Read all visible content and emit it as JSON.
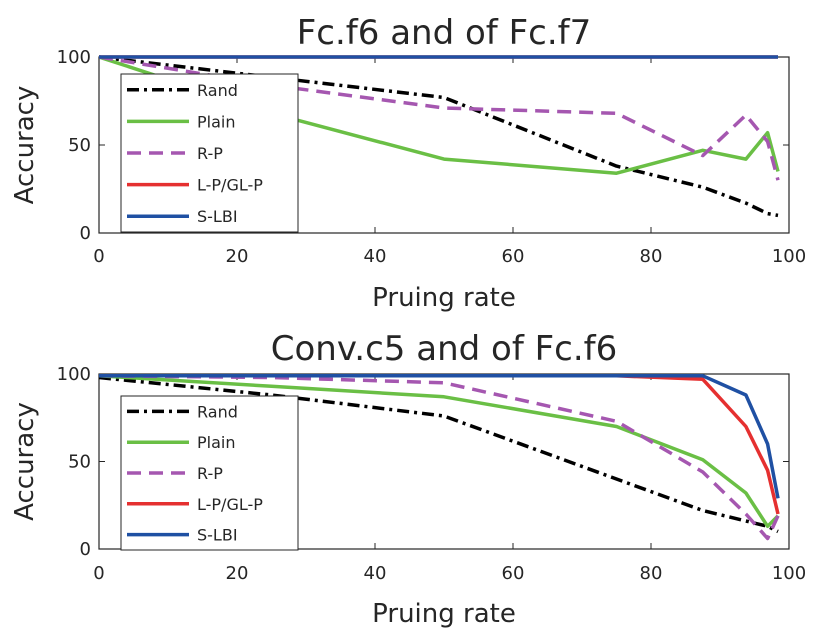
{
  "chart_data": [
    {
      "type": "line",
      "title": "Fc.f6 and of Fc.f7",
      "xlabel": "Pruing rate",
      "ylabel": "Accuracy",
      "xlim": [
        0,
        100
      ],
      "ylim": [
        0,
        100
      ],
      "xticks": [
        "0",
        "20",
        "40",
        "60",
        "80",
        "100"
      ],
      "yticks": [
        "0",
        "50",
        "100"
      ],
      "legend_position": "top-left",
      "series": [
        {
          "name": "Rand",
          "color": "#000000",
          "style": "dashdot",
          "x": [
            0,
            50,
            75,
            87.5,
            93.75,
            96.9,
            98.4
          ],
          "y": [
            100,
            77,
            38,
            26,
            17,
            11,
            10
          ]
        },
        {
          "name": "Plain",
          "color": "#6abf45",
          "style": "solid",
          "x": [
            0,
            25,
            50,
            75,
            87.5,
            93.75,
            96.9,
            98.4
          ],
          "y": [
            100,
            68,
            42,
            34,
            47,
            42,
            57,
            35
          ]
        },
        {
          "name": "R-P",
          "color": "#a557b0",
          "style": "dashed",
          "x": [
            0,
            25,
            50,
            75,
            87.5,
            93.75,
            96.9,
            98.4
          ],
          "y": [
            100,
            84,
            71,
            68,
            44,
            67,
            52,
            30
          ]
        },
        {
          "name": "L-P/GL-P",
          "color": "#e53030",
          "style": "solid",
          "x": [
            0,
            25,
            50,
            75,
            87.5,
            93.75,
            96.9,
            98.4
          ],
          "y": [
            100,
            100,
            100,
            100,
            100,
            100,
            100,
            100
          ]
        },
        {
          "name": "S-LBI",
          "color": "#1f50a3",
          "style": "solid",
          "x": [
            0,
            25,
            50,
            75,
            87.5,
            93.75,
            96.9,
            98.4
          ],
          "y": [
            100,
            100,
            100,
            100,
            100,
            100,
            100,
            100
          ]
        }
      ]
    },
    {
      "type": "line",
      "title": "Conv.c5 and of Fc.f6",
      "xlabel": "Pruing rate",
      "ylabel": "Accuracy",
      "xlim": [
        0,
        100
      ],
      "ylim": [
        0,
        100
      ],
      "xticks": [
        "0",
        "20",
        "40",
        "60",
        "80",
        "100"
      ],
      "yticks": [
        "0",
        "50",
        "100"
      ],
      "legend_position": "bottom-left",
      "series": [
        {
          "name": "Rand",
          "color": "#000000",
          "style": "dashdot",
          "x": [
            0,
            25,
            50,
            75,
            87.5,
            93.75,
            96.9,
            98.4
          ],
          "y": [
            98,
            88,
            76,
            40,
            22,
            16,
            13,
            10
          ]
        },
        {
          "name": "Plain",
          "color": "#6abf45",
          "style": "solid",
          "x": [
            0,
            25,
            50,
            75,
            87.5,
            93.75,
            96.9,
            98.4
          ],
          "y": [
            99,
            93,
            87,
            70,
            51,
            32,
            13,
            19
          ]
        },
        {
          "name": "R-P",
          "color": "#a557b0",
          "style": "dashed",
          "x": [
            0,
            25,
            50,
            75,
            87.5,
            93.75,
            96.9,
            98.4
          ],
          "y": [
            99,
            98,
            95,
            73,
            44,
            20,
            6,
            19
          ]
        },
        {
          "name": "L-P/GL-P",
          "color": "#e53030",
          "style": "solid",
          "x": [
            0,
            25,
            50,
            75,
            87.5,
            93.75,
            96.9,
            98.4
          ],
          "y": [
            99,
            99,
            99,
            99,
            97,
            70,
            45,
            20
          ]
        },
        {
          "name": "S-LBI",
          "color": "#1f50a3",
          "style": "solid",
          "x": [
            0,
            25,
            50,
            75,
            87.5,
            93.75,
            96.9,
            98.4
          ],
          "y": [
            99,
            99,
            99,
            99,
            99,
            88,
            60,
            29
          ]
        }
      ]
    }
  ]
}
